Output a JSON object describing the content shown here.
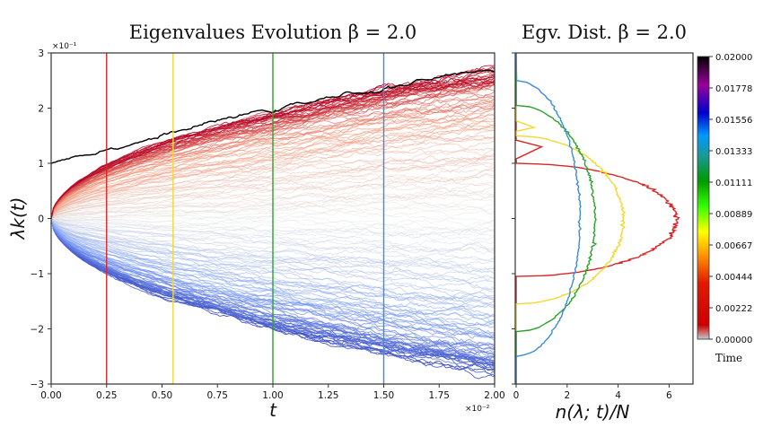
{
  "chart_data": [
    {
      "type": "line",
      "title": "Eigenvalues Evolution β = 2.0",
      "xlabel": "t",
      "ylabel": "λk(t)",
      "x_multiplier": "×10⁻²",
      "y_multiplier": "×10⁻¹",
      "xlim": [
        0.0,
        2.0
      ],
      "ylim": [
        -3,
        3
      ],
      "xticks": [
        "0.00",
        "0.25",
        "0.50",
        "0.75",
        "1.00",
        "1.25",
        "1.50",
        "1.75",
        "2.00"
      ],
      "yticks": [
        "−3",
        "−2",
        "−1",
        "0",
        "1",
        "2",
        "3"
      ],
      "num_trajectories": 160,
      "trajectory_spread_at_end": [
        -2.75,
        2.65
      ],
      "top_trajectory": {
        "color": "#000000",
        "start": 1.0,
        "end": 2.72
      },
      "time_markers": [
        {
          "t": 0.25,
          "color": "#d62728"
        },
        {
          "t": 0.55,
          "color": "#f2d930"
        },
        {
          "t": 1.0,
          "color": "#2ca02c"
        },
        {
          "t": 1.5,
          "color": "#3b8bd9"
        }
      ],
      "grid": false
    },
    {
      "type": "line",
      "title": "Egv. Dist. β = 2.0",
      "xlabel": "n(λ; t)/N",
      "xlim": [
        0,
        7
      ],
      "xticks": [
        "0",
        "2",
        "4",
        "6"
      ],
      "ylim": [
        -3,
        3
      ],
      "series": [
        {
          "name": "t=0.0025",
          "color": "#d62728",
          "support": [
            -1.05,
            1.0
          ],
          "peak": 6.3,
          "outlier_spike": {
            "y": 1.3,
            "value": 1.0
          }
        },
        {
          "name": "t=0.0055",
          "color": "#f2d930",
          "support": [
            -1.55,
            1.5
          ],
          "peak": 4.2,
          "outlier_spike": {
            "y": 1.65,
            "value": 0.7
          }
        },
        {
          "name": "t=0.0100",
          "color": "#2ca02c",
          "support": [
            -2.05,
            2.05
          ],
          "peak": 3.1
        },
        {
          "name": "t=0.0150",
          "color": "#3b8bd9",
          "support": [
            -2.5,
            2.5
          ],
          "peak": 2.5
        }
      ]
    },
    {
      "type": "colorbar",
      "label": "Time",
      "range": [
        0.0,
        0.02
      ],
      "ticks": [
        "0.00000",
        "0.00222",
        "0.00444",
        "0.00667",
        "0.00889",
        "0.01111",
        "0.01333",
        "0.01556",
        "0.01778",
        "0.02000"
      ],
      "colors": [
        "#c8c8c8",
        "#cc0000",
        "#ff9900",
        "#ffff00",
        "#33ff00",
        "#009900",
        "#1a9999",
        "#0099ff",
        "#0000cc",
        "#990099",
        "#000000"
      ]
    }
  ]
}
